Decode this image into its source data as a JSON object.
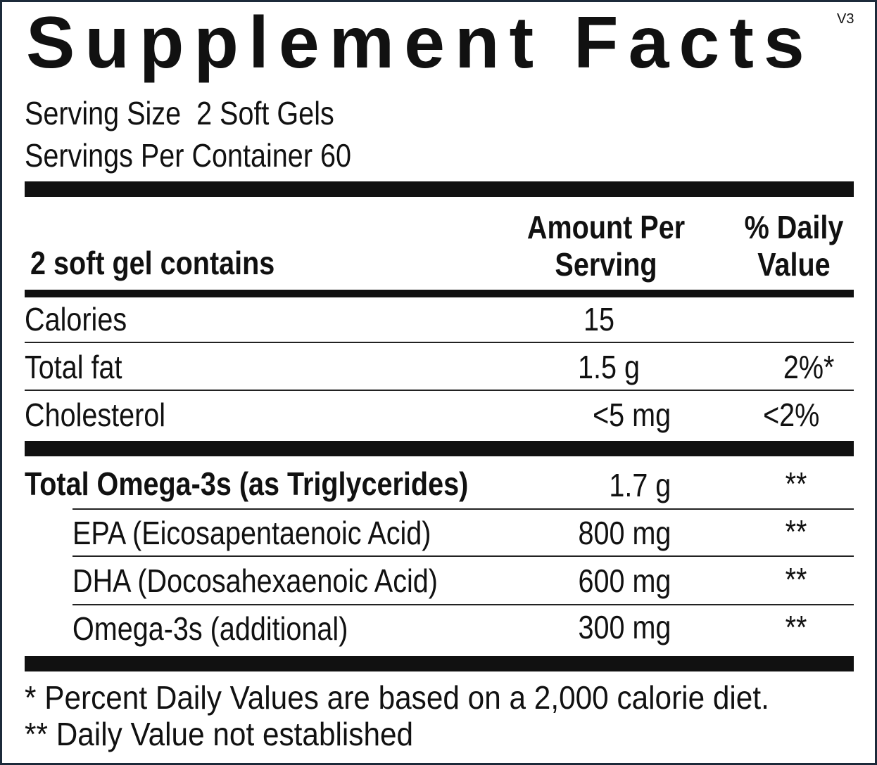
{
  "header": {
    "title": "Supplement Facts",
    "version": "V3",
    "serving_size": "Serving Size  2 Soft Gels",
    "servings_per_container": "Servings Per Container 60"
  },
  "table": {
    "columns": [
      "2 soft gel contains",
      "Amount Per Serving",
      "% Daily Value"
    ],
    "rows": [
      {
        "name": "Calories",
        "amount": "15"
      },
      {
        "name": "Total fat",
        "amount": "1.5 g",
        "daily_value": "2%*"
      },
      {
        "name": "Cholesterol",
        "amount": "<5 mg",
        "daily_value": "<2%"
      },
      {
        "name": "Total Omega-3s (as Triglycerides)",
        "amount": "1.7 g",
        "daily_value": "**"
      },
      {
        "name": "EPA (Eicosapentaenoic Acid)",
        "amount": "800 mg",
        "daily_value": "**"
      },
      {
        "name": "DHA (Docosahexaenoic Acid)",
        "amount": "600 mg",
        "daily_value": "**"
      },
      {
        "name": "Omega-3s (additional)",
        "amount": "300 mg",
        "daily_value": "**"
      }
    ]
  },
  "footnotes": [
    "* Percent Daily Values are based on a 2,000 calorie diet.",
    "** Daily Value not established"
  ]
}
